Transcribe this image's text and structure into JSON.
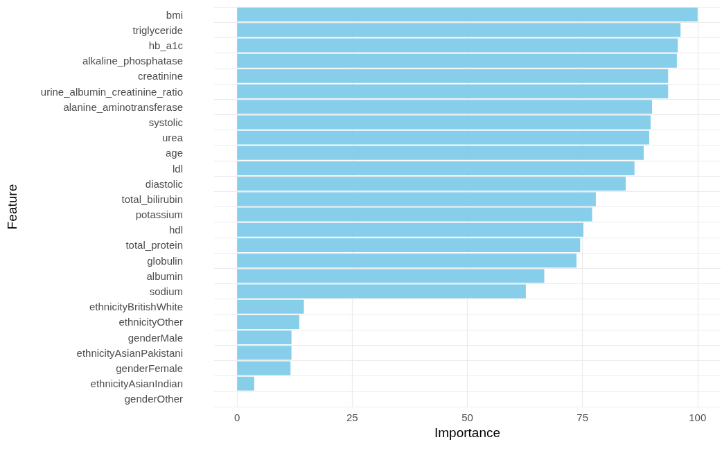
{
  "chart_data": {
    "type": "bar",
    "orientation": "horizontal",
    "xlabel": "Importance",
    "ylabel": "Feature",
    "categories": [
      "bmi",
      "triglyceride",
      "hb_a1c",
      "alkaline_phosphatase",
      "creatinine",
      "urine_albumin_creatinine_ratio",
      "alanine_aminotransferase",
      "systolic",
      "urea",
      "age",
      "ldl",
      "diastolic",
      "total_bilirubin",
      "potassium",
      "hdl",
      "total_protein",
      "globulin",
      "albumin",
      "sodium",
      "ethnicityBritishWhite",
      "ethnicityOther",
      "genderMale",
      "ethnicityAsianPakistani",
      "genderFemale",
      "ethnicityAsianIndian",
      "genderOther"
    ],
    "values": [
      100,
      96.3,
      95.7,
      95.5,
      93.6,
      93.6,
      90.1,
      89.8,
      89.5,
      88.3,
      86.3,
      84.4,
      77.9,
      77.1,
      75.2,
      74.5,
      73.7,
      66.7,
      62.7,
      14.5,
      13.5,
      11.8,
      11.8,
      11.6,
      3.7,
      0
    ],
    "color": "#87ceeb",
    "xlim": [
      -5,
      105
    ],
    "xticks": [
      0,
      25,
      50,
      75,
      100
    ],
    "grid": true
  }
}
